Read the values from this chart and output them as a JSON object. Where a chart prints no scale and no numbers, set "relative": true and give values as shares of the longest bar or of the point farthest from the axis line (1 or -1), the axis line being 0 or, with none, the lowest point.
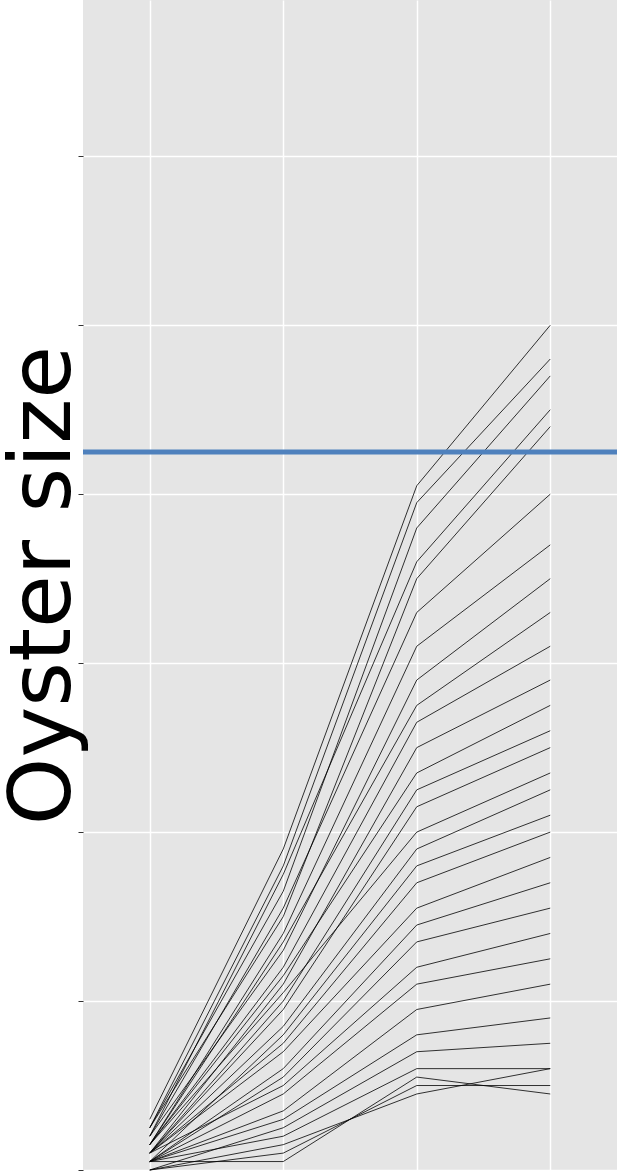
{
  "chart_data": {
    "type": "line",
    "relative": true,
    "ylabel": "Oyster size",
    "categories": [
      null,
      null,
      null,
      null
    ],
    "grid": true,
    "legend": false,
    "tick_labels": false,
    "marker": "none",
    "line_style": "solid",
    "ref_lines": [
      {
        "axis": "y",
        "value": 0.85,
        "color": "#4f81bd"
      }
    ],
    "series": [
      {
        "color": "#000000",
        "values": [
          0.06,
          0.38,
          0.81,
          1.0
        ]
      },
      {
        "color": "#000000",
        "values": [
          0.05,
          0.36,
          0.79,
          0.96
        ]
      },
      {
        "color": "#000000",
        "values": [
          0.05,
          0.33,
          0.76,
          0.94
        ]
      },
      {
        "color": "#000000",
        "values": [
          0.04,
          0.35,
          0.72,
          0.9
        ]
      },
      {
        "color": "#000000",
        "values": [
          0.05,
          0.3,
          0.7,
          0.88
        ]
      },
      {
        "color": "#000000",
        "values": [
          0.04,
          0.31,
          0.66,
          0.8
        ]
      },
      {
        "color": "#000000",
        "values": [
          0.03,
          0.28,
          0.62,
          0.74
        ]
      },
      {
        "color": "#000000",
        "values": [
          0.04,
          0.26,
          0.58,
          0.7
        ]
      },
      {
        "color": "#000000",
        "values": [
          0.03,
          0.27,
          0.55,
          0.66
        ]
      },
      {
        "color": "#000000",
        "values": [
          0.03,
          0.24,
          0.53,
          0.62
        ]
      },
      {
        "color": "#000000",
        "values": [
          0.02,
          0.22,
          0.5,
          0.58
        ]
      },
      {
        "color": "#000000",
        "values": [
          0.03,
          0.23,
          0.47,
          0.55
        ]
      },
      {
        "color": "#000000",
        "values": [
          0.02,
          0.2,
          0.45,
          0.52
        ]
      },
      {
        "color": "#000000",
        "values": [
          0.02,
          0.19,
          0.43,
          0.5
        ]
      },
      {
        "color": "#000000",
        "values": [
          0.03,
          0.21,
          0.4,
          0.47
        ]
      },
      {
        "color": "#000000",
        "values": [
          0.02,
          0.17,
          0.38,
          0.45
        ]
      },
      {
        "color": "#000000",
        "values": [
          0.01,
          0.16,
          0.36,
          0.42
        ]
      },
      {
        "color": "#000000",
        "values": [
          0.02,
          0.15,
          0.34,
          0.4
        ]
      },
      {
        "color": "#000000",
        "values": [
          0.02,
          0.14,
          0.31,
          0.37
        ]
      },
      {
        "color": "#000000",
        "values": [
          0.01,
          0.12,
          0.29,
          0.34
        ]
      },
      {
        "color": "#000000",
        "values": [
          0.01,
          0.11,
          0.27,
          0.31
        ]
      },
      {
        "color": "#000000",
        "values": [
          0.02,
          0.1,
          0.24,
          0.28
        ]
      },
      {
        "color": "#000000",
        "values": [
          0.01,
          0.09,
          0.22,
          0.25
        ]
      },
      {
        "color": "#000000",
        "values": [
          0.01,
          0.07,
          0.19,
          0.22
        ]
      },
      {
        "color": "#000000",
        "values": [
          0.01,
          0.06,
          0.16,
          0.18
        ]
      },
      {
        "color": "#000000",
        "values": [
          0.0,
          0.05,
          0.14,
          0.15
        ]
      },
      {
        "color": "#000000",
        "values": [
          0.01,
          0.04,
          0.12,
          0.12
        ]
      },
      {
        "color": "#000000",
        "values": [
          0.0,
          0.02,
          0.1,
          0.1
        ]
      },
      {
        "color": "#000000",
        "values": [
          0.01,
          0.01,
          0.11,
          0.09
        ]
      },
      {
        "color": "#000000",
        "values": [
          0.0,
          0.03,
          0.09,
          0.12
        ]
      }
    ]
  }
}
